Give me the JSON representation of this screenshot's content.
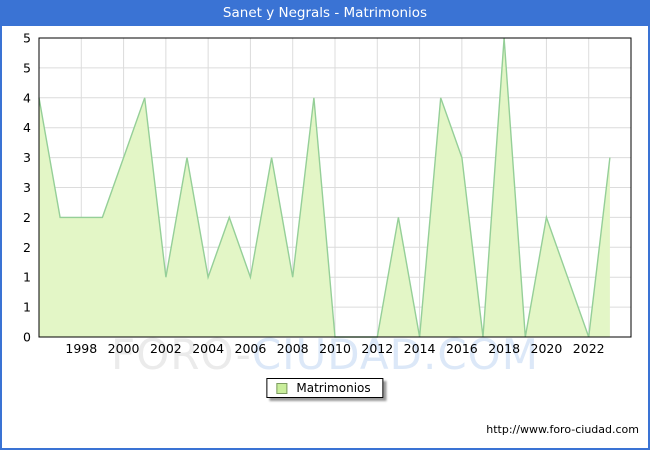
{
  "window": {
    "title": "Sanet y Negrals - Matrimonios"
  },
  "colors": {
    "accent_blue": "#3a73d4",
    "area_fill": "#e3f6c6",
    "area_line": "#95cf98",
    "gridline": "#dcdcdc",
    "legend_swatch_fill": "#c9ee9b",
    "legend_swatch_border": "#7d9b62",
    "watermark_gray": "#ebebeb",
    "watermark_blue": "#dce8f8"
  },
  "legend": {
    "label": "Matrimonios"
  },
  "watermark": {
    "part1": "FORO-",
    "part2": "CIUDAD.COM"
  },
  "footer": {
    "url": "http://www.foro-ciudad.com"
  },
  "chart_data": {
    "type": "area",
    "title": "Sanet y Negrals - Matrimonios",
    "series_name": "Matrimonios",
    "x": [
      1996,
      1997,
      1998,
      1999,
      2000,
      2001,
      2002,
      2003,
      2004,
      2005,
      2006,
      2007,
      2008,
      2009,
      2010,
      2011,
      2012,
      2013,
      2014,
      2015,
      2016,
      2017,
      2018,
      2019,
      2020,
      2021,
      2022,
      2023
    ],
    "values": [
      4,
      2,
      2,
      2,
      3,
      4,
      1,
      3,
      1,
      2,
      1,
      3,
      1,
      4,
      0,
      0,
      0,
      2,
      0,
      4,
      3,
      0,
      5,
      0,
      2,
      1,
      0,
      3
    ],
    "xlim": [
      1996,
      2024
    ],
    "ylim": [
      0,
      5
    ],
    "x_tick_years": [
      1998,
      2000,
      2002,
      2004,
      2006,
      2008,
      2010,
      2012,
      2014,
      2016,
      2018,
      2020,
      2022
    ],
    "y_tick_step": 0.5,
    "y_tick_labels": [
      "5",
      "5",
      "4",
      "4",
      "3",
      "3",
      "2",
      "2",
      "1",
      "1",
      "0"
    ],
    "grid": true,
    "legend_position": "bottom-center"
  }
}
